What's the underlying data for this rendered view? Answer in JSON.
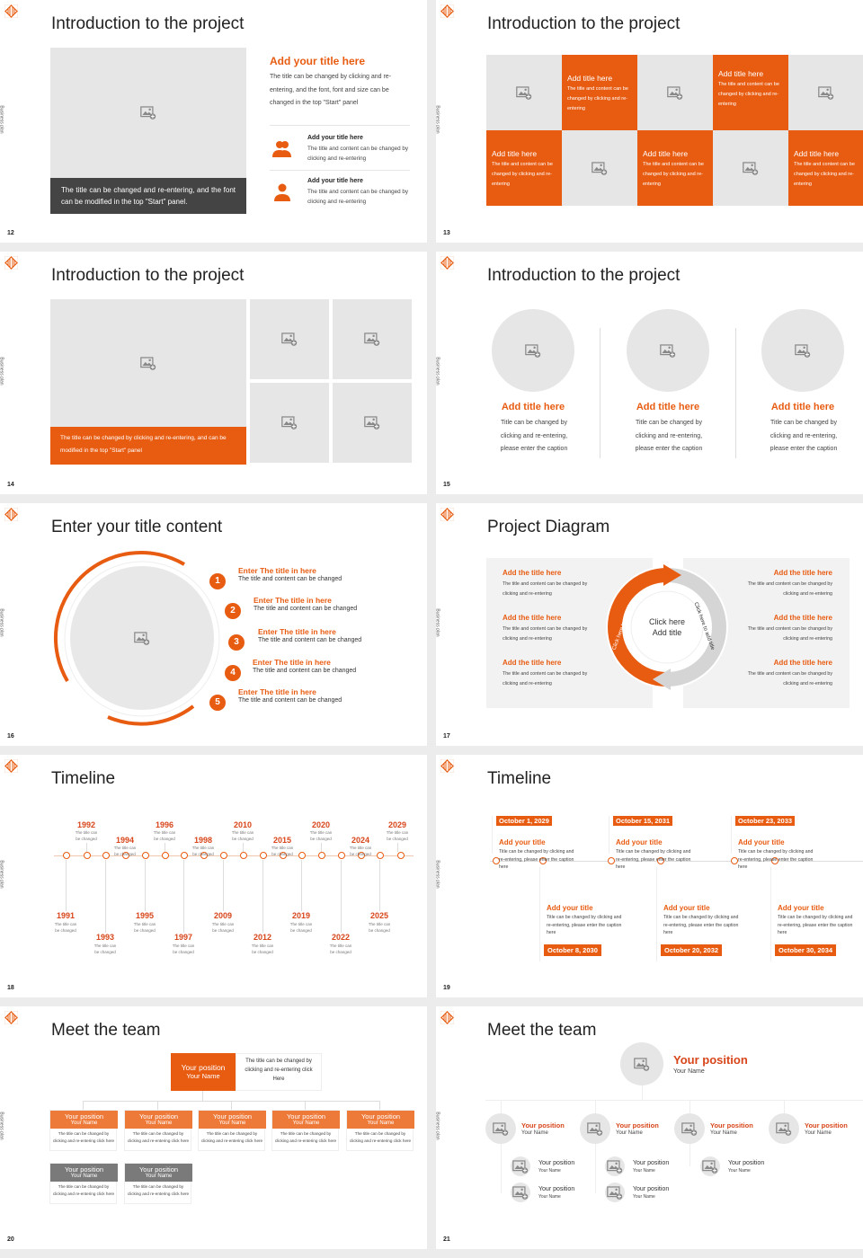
{
  "common": {
    "side_label": "Business plan",
    "accent": "#e85c12",
    "gray": "#e6e6e6"
  },
  "s12": {
    "page": "12",
    "title": "Introduction to the project",
    "caption": "The title can be changed and re-entering, and the font can be modified in the top \"Start\" panel.",
    "heading": "Add your title here",
    "paragraph": "The title can be changed by clicking and re-entering, and the font, font and size can be changed in the top \"Start\" panel",
    "items": [
      {
        "icon": "people-icon",
        "title": "Add your title here",
        "text": "The title and content can be changed by clicking and re-entering"
      },
      {
        "icon": "person-icon",
        "title": "Add your title here",
        "text": "The title and content can be changed by clicking and re-entering"
      }
    ]
  },
  "s13": {
    "page": "13",
    "title": "Introduction to the project",
    "cards": [
      {
        "title": "Add title here",
        "text": "The title and content can be changed by clicking and re-entering"
      },
      {
        "title": "Add title here",
        "text": "The title and content can be changed by clicking and re-entering"
      },
      {
        "title": "Add title here",
        "text": "The title and content can be changed by clicking and re-entering"
      },
      {
        "title": "Add title here",
        "text": "The title and content can be changed by clicking and re-entering"
      },
      {
        "title": "Add title here",
        "text": "The title and content can be changed by clicking and re-entering"
      }
    ]
  },
  "s14": {
    "page": "14",
    "title": "Introduction to the project",
    "caption": "The title can be changed by clicking and re-entering, and can be modified in the top \"Start\" panel"
  },
  "s15": {
    "page": "15",
    "title": "Introduction to the project",
    "cols": [
      {
        "title": "Add title here",
        "text": "Title can be changed by clicking and re-entering, please enter the caption"
      },
      {
        "title": "Add title here",
        "text": "Title can be changed by clicking and re-entering, please enter the caption"
      },
      {
        "title": "Add title here",
        "text": "Title can be changed by clicking and re-entering, please enter the caption"
      }
    ]
  },
  "s16": {
    "page": "16",
    "title": "Enter your title content",
    "items": [
      {
        "num": "1",
        "title": "Enter The title in here",
        "text": "The title and content can be changed"
      },
      {
        "num": "2",
        "title": "Enter The title in here",
        "text": "The title and content can be changed"
      },
      {
        "num": "3",
        "title": "Enter The title in here",
        "text": "The title and content can be changed"
      },
      {
        "num": "4",
        "title": "Enter The title in here",
        "text": "The title and content can be changed"
      },
      {
        "num": "5",
        "title": "Enter The title in here",
        "text": "The title and content can be changed"
      }
    ]
  },
  "s17": {
    "page": "17",
    "title": "Project Diagram",
    "center": [
      "Click here",
      "Add title"
    ],
    "arc_left": "Click here to add title",
    "arc_right": "Click here to add title",
    "left": [
      {
        "title": "Add the title here",
        "text": "The title and content can be changed by clicking and re-entering"
      },
      {
        "title": "Add the title here",
        "text": "The title and content can be changed by clicking and re-entering"
      },
      {
        "title": "Add the title here",
        "text": "The title and content can be changed by clicking and re-entering"
      }
    ],
    "right": [
      {
        "title": "Add the title here",
        "text": "The title and content can be changed by clicking and re-entering"
      },
      {
        "title": "Add the title here",
        "text": "The title and content can be changed by clicking and re-entering"
      },
      {
        "title": "Add the title here",
        "text": "The title and content can be changed by clicking and re-entering"
      }
    ]
  },
  "s18": {
    "page": "18",
    "title": "Timeline",
    "above": [
      {
        "year": "1992",
        "text": "The title can be changed"
      },
      {
        "year": "1994",
        "text": "The title can be changed"
      },
      {
        "year": "1996",
        "text": "The title can be changed"
      },
      {
        "year": "1998",
        "text": "The title can be changed"
      },
      {
        "year": "2010",
        "text": "The title can be changed"
      },
      {
        "year": "2015",
        "text": "The title can be changed"
      },
      {
        "year": "2020",
        "text": "The title can be changed"
      },
      {
        "year": "2024",
        "text": "The title can be changed"
      },
      {
        "year": "2029",
        "text": "The title can be changed"
      }
    ],
    "below": [
      {
        "year": "1991",
        "text": "The title can be changed"
      },
      {
        "year": "1993",
        "text": "The title can be changed"
      },
      {
        "year": "1995",
        "text": "The title can be changed"
      },
      {
        "year": "1997",
        "text": "The title can be changed"
      },
      {
        "year": "2009",
        "text": "The title can be changed"
      },
      {
        "year": "2012",
        "text": "The title can be changed"
      },
      {
        "year": "2019",
        "text": "The title can be changed"
      },
      {
        "year": "2022",
        "text": "The title can be changed"
      },
      {
        "year": "2025",
        "text": "The title can be changed"
      }
    ]
  },
  "s19": {
    "page": "19",
    "title": "Timeline",
    "top": [
      {
        "date": "October 1, 2029",
        "title": "Add your title",
        "text": "Title can be changed by clicking and re-entering, please enter the caption here"
      },
      {
        "date": "October 15, 2031",
        "title": "Add your title",
        "text": "Title can be changed by clicking and re-entering, please enter the caption here"
      },
      {
        "date": "October 23, 2033",
        "title": "Add your title",
        "text": "Title can be changed by clicking and re-entering, please enter the caption here"
      }
    ],
    "bottom": [
      {
        "date": "October 8, 2030",
        "title": "Add your title",
        "text": "Title can be changed by clicking and re-entering, please enter the caption here"
      },
      {
        "date": "October 20, 2032",
        "title": "Add your title",
        "text": "Title can be changed by clicking and re-entering, please enter the caption here"
      },
      {
        "date": "October 30, 2034",
        "title": "Add your title",
        "text": "Title can be changed by clicking and re-entering, please enter the caption here"
      }
    ]
  },
  "s20": {
    "page": "20",
    "title": "Meet the team",
    "lead": {
      "position": "Your position",
      "name": "Your Name",
      "text": "The title can be changed by clicking and re-entering click Here"
    },
    "members": [
      {
        "position": "Your position",
        "name": "Your Name",
        "text": "The title can be changed by clicking and re-entering click here"
      },
      {
        "position": "Your position",
        "name": "Your Name",
        "text": "The title can be changed by clicking and re-entering click here"
      },
      {
        "position": "Your position",
        "name": "Your Name",
        "text": "The title can be changed by clicking and re-entering click here"
      },
      {
        "position": "Your position",
        "name": "Your Name",
        "text": "The title can be changed by clicking and re-entering click here"
      },
      {
        "position": "Your position",
        "name": "Your Name",
        "text": "The title can be changed by clicking and re-entering click here"
      }
    ],
    "sub": [
      {
        "position": "Your position",
        "name": "Your Name",
        "text": "The title can be changed by clicking and re-entering click here"
      },
      {
        "position": "Your position",
        "name": "Your Name",
        "text": "The title can be changed by clicking and re-entering click here"
      }
    ]
  },
  "s21": {
    "page": "21",
    "title": "Meet the team",
    "lead": {
      "position": "Your position",
      "name": "Your Name"
    },
    "level2": [
      {
        "position": "Your position",
        "name": "Your Name"
      },
      {
        "position": "Your position",
        "name": "Your Name"
      },
      {
        "position": "Your position",
        "name": "Your Name"
      },
      {
        "position": "Your position",
        "name": "Your Name"
      }
    ],
    "level3": [
      {
        "position": "Your position",
        "name": "Your Name"
      },
      {
        "position": "Your position",
        "name": "Your Name"
      },
      {
        "position": "Your position",
        "name": "Your Name"
      },
      {
        "position": "Your position",
        "name": "Your Name"
      },
      {
        "position": "Your position",
        "name": "Your Name"
      }
    ]
  }
}
